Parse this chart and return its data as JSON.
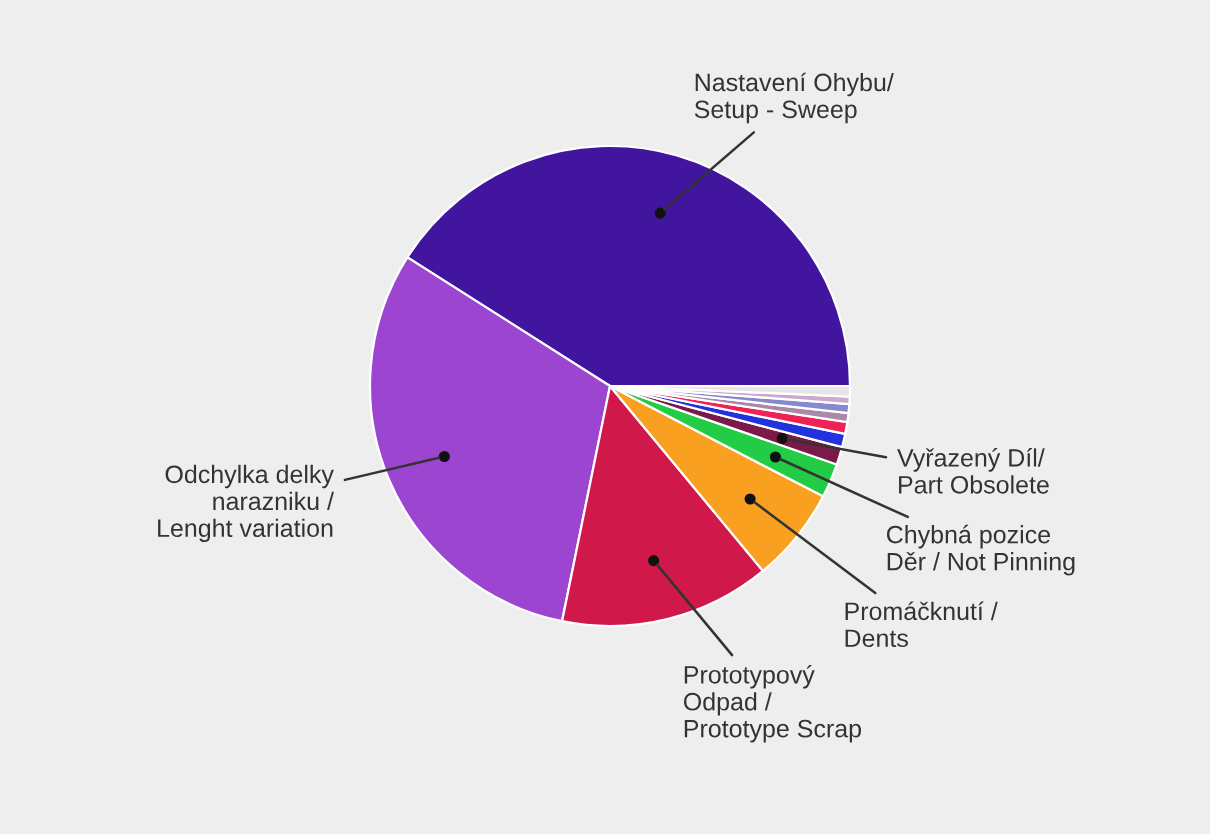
{
  "chart_data": {
    "type": "pie",
    "categories": [
      "Nastavení Ohybu/\nSetup - Sweep",
      "Odchylka delky\nnarazniku /\nLenght variation",
      "Prototypový\nOdpad /\nPrototype Scrap",
      "Promáčknutí /\nDents",
      "Chybná pozice\nDěr / Not Pinning",
      "Vyřazený Díl/\nPart Obsolete",
      null,
      null,
      null,
      null,
      null,
      null
    ],
    "values": [
      41,
      30.8,
      14.2,
      6.4,
      2.3,
      1.2,
      0.9,
      0.8,
      0.6,
      0.6,
      0.5,
      0.7
    ],
    "colors": [
      "#42159f",
      "#9b45d0",
      "#d0184a",
      "#f9a020",
      "#22cc44",
      "#7a1a4a",
      "#2233dd",
      "#ee2255",
      "#aa88aa",
      "#8888cc",
      "#ccaacc",
      "#e6e6e6"
    ]
  }
}
